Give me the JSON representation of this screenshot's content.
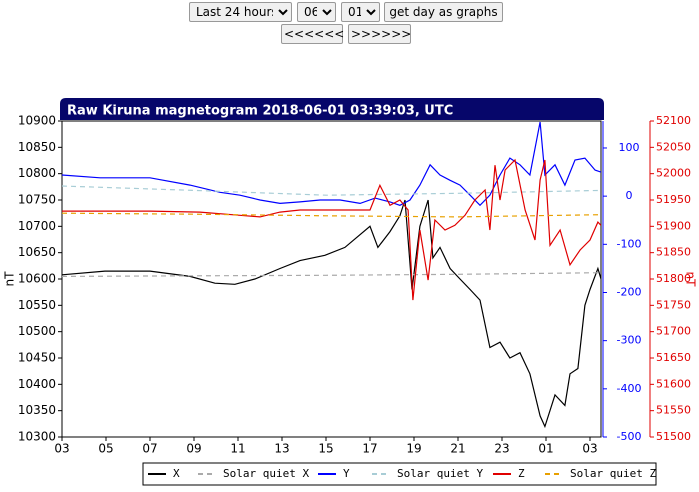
{
  "controls": {
    "range": "Last 24 hours",
    "month": "06",
    "day": "01",
    "submit": "get day as graphs",
    "prev": "<<<<<<",
    "next": ">>>>>>"
  },
  "chart_data": {
    "type": "line",
    "title": "Raw Kiruna magnetogram 2018-06-01 03:39:03, UTC",
    "ylabel": "nT",
    "y3label": "nT",
    "xlim": [
      0,
      24.5
    ],
    "xticks": [
      {
        "value": 0,
        "label": "03"
      },
      {
        "value": 2,
        "label": "05"
      },
      {
        "value": 4,
        "label": "07"
      },
      {
        "value": 6,
        "label": "09"
      },
      {
        "value": 8,
        "label": "11"
      },
      {
        "value": 10,
        "label": "13"
      },
      {
        "value": 12,
        "label": "15"
      },
      {
        "value": 14,
        "label": "17"
      },
      {
        "value": 16,
        "label": "19"
      },
      {
        "value": 18,
        "label": "21"
      },
      {
        "value": 20,
        "label": "23"
      },
      {
        "value": 22,
        "label": "01"
      },
      {
        "value": 24,
        "label": "03"
      }
    ],
    "ylim": [
      10300,
      10900
    ],
    "yticks": [
      10300,
      10350,
      10400,
      10450,
      10500,
      10550,
      10600,
      10650,
      10700,
      10750,
      10800,
      10850,
      10900
    ],
    "y2lim": [
      -500,
      156
    ],
    "y2ticks": [
      -500,
      -400,
      -300,
      -200,
      -100,
      0,
      100
    ],
    "y3lim": [
      51500,
      52100
    ],
    "y3ticks": [
      51500,
      51550,
      51600,
      51650,
      51700,
      51750,
      51800,
      51850,
      51900,
      51950,
      52000,
      52050,
      52100
    ],
    "legend": "bottom",
    "series": [
      {
        "name": "X",
        "color": "#000000",
        "axis": "y",
        "style": "solid",
        "x": [
          0,
          1.95,
          4,
          5.82,
          6.95,
          7.86,
          8.77,
          9.91,
          10.82,
          11.95,
          12.86,
          14,
          14.36,
          14.91,
          15.36,
          15.59,
          15.91,
          16.27,
          16.64,
          16.86,
          17.18,
          17.64,
          18.09,
          18.55,
          19,
          19.45,
          19.91,
          20.36,
          20.82,
          21.27,
          21.73,
          21.95,
          22.41,
          22.86,
          23.09,
          23.45,
          23.77,
          24,
          24.36,
          24.5
        ],
        "values": [
          10608,
          10615,
          10615,
          10605,
          10592,
          10590,
          10600,
          10620,
          10635,
          10645,
          10660,
          10700,
          10660,
          10690,
          10720,
          10750,
          10580,
          10700,
          10750,
          10640,
          10660,
          10620,
          10600,
          10580,
          10560,
          10470,
          10480,
          10450,
          10460,
          10420,
          10340,
          10320,
          10380,
          10360,
          10420,
          10430,
          10550,
          10580,
          10620,
          10600
        ]
      },
      {
        "name": "Solar quiet X",
        "color": "#aaaaaa",
        "axis": "y",
        "style": "dashed",
        "x": [
          0,
          6,
          12,
          18,
          24.5
        ],
        "values": [
          10605,
          10606,
          10607,
          10609,
          10612
        ]
      },
      {
        "name": "Y",
        "color": "#0000ff",
        "axis": "y2",
        "style": "solid",
        "x": [
          0,
          1.73,
          4,
          5.82,
          7.18,
          8.09,
          9,
          9.91,
          10.82,
          11.73,
          12.64,
          13.55,
          14.23,
          14.91,
          15.36,
          15.82,
          16.27,
          16.73,
          17.18,
          17.64,
          18.09,
          18.55,
          19,
          19.45,
          19.91,
          20.36,
          20.82,
          21.27,
          21.73,
          21.95,
          22.41,
          22.86,
          23.32,
          23.77,
          24.23,
          24.5
        ],
        "values": [
          44,
          38,
          38,
          23,
          8,
          2,
          -8,
          -15,
          -12,
          -8,
          -8,
          -15,
          -4,
          -12,
          -19,
          -8,
          23,
          65,
          44,
          33,
          23,
          2,
          -19,
          2,
          44,
          79,
          65,
          44,
          154,
          44,
          65,
          23,
          75,
          79,
          54,
          50
        ]
      },
      {
        "name": "Solar quiet Y",
        "color": "#a8cdd6",
        "axis": "y2",
        "style": "dashed",
        "x": [
          0,
          6,
          12,
          18,
          24.5
        ],
        "values": [
          21,
          12,
          2,
          6,
          12
        ]
      },
      {
        "name": "Z",
        "color": "#e00000",
        "axis": "y3",
        "style": "solid",
        "x": [
          0,
          4,
          6.27,
          8.09,
          9,
          9.91,
          10.82,
          12.64,
          14,
          14.45,
          14.91,
          15.36,
          15.73,
          15.95,
          16.27,
          16.64,
          16.95,
          17.41,
          17.86,
          18.32,
          18.77,
          19.23,
          19.45,
          19.68,
          19.91,
          20.14,
          20.59,
          21.05,
          21.5,
          21.73,
          21.95,
          22.18,
          22.64,
          23.09,
          23.55,
          24,
          24.36,
          24.5
        ],
        "values": [
          51929,
          51929,
          51927,
          51921,
          51918,
          51927,
          51931,
          51931,
          51931,
          51978,
          51940,
          51950,
          51931,
          51760,
          51893,
          51798,
          51912,
          51893,
          51902,
          51921,
          51950,
          51969,
          51893,
          52016,
          51950,
          52007,
          52026,
          51931,
          51874,
          51988,
          52026,
          51864,
          51893,
          51827,
          51855,
          51874,
          51908,
          51902
        ]
      },
      {
        "name": "Solar quiet Z",
        "color": "#e8a000",
        "axis": "y3",
        "style": "dashed",
        "x": [
          0,
          6,
          12,
          18,
          24.5
        ],
        "values": [
          51925,
          51923,
          51920,
          51918,
          51922
        ]
      }
    ]
  }
}
